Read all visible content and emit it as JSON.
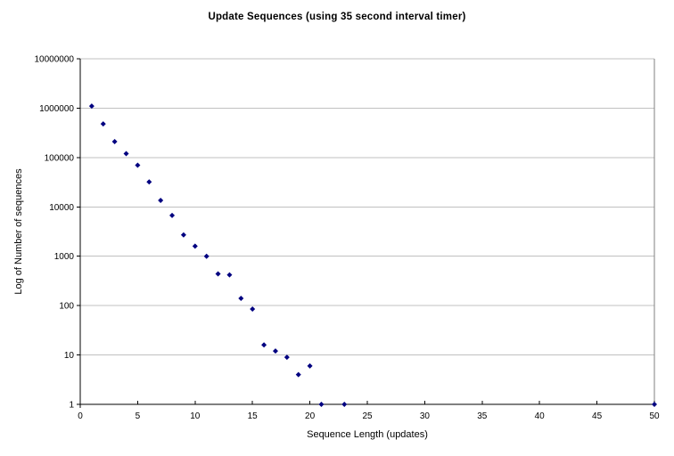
{
  "chart_data": {
    "type": "scatter",
    "title": "Update Sequences (using 35 second interval timer)",
    "xlabel": "Sequence Length (updates)",
    "ylabel": "Log of Number of sequences",
    "y_scale": "log",
    "xlim": [
      0,
      50
    ],
    "ylim": [
      1,
      10000000
    ],
    "x_ticks": [
      0,
      5,
      10,
      15,
      20,
      25,
      30,
      35,
      40,
      45,
      50
    ],
    "y_ticks": [
      1,
      10,
      100,
      1000,
      10000,
      100000,
      1000000,
      10000000
    ],
    "grid": "horizontal-major",
    "legend": "none",
    "marker": {
      "shape": "diamond",
      "color": "#000080",
      "size": 6
    },
    "colors": {
      "gridline": "#c0c0c0",
      "plot_border": "#808080",
      "axis": "#000000",
      "background": "#ffffff"
    },
    "points": [
      [
        1,
        1100000
      ],
      [
        2,
        480000
      ],
      [
        3,
        210000
      ],
      [
        4,
        120000
      ],
      [
        5,
        70000
      ],
      [
        6,
        32000
      ],
      [
        7,
        13500
      ],
      [
        8,
        6700
      ],
      [
        9,
        2700
      ],
      [
        10,
        1600
      ],
      [
        11,
        1000
      ],
      [
        12,
        440
      ],
      [
        13,
        420
      ],
      [
        14,
        140
      ],
      [
        15,
        85
      ],
      [
        16,
        16
      ],
      [
        17,
        12
      ],
      [
        18,
        9
      ],
      [
        19,
        4
      ],
      [
        20,
        6
      ],
      [
        21,
        1
      ],
      [
        23,
        1
      ],
      [
        50,
        1
      ]
    ]
  }
}
